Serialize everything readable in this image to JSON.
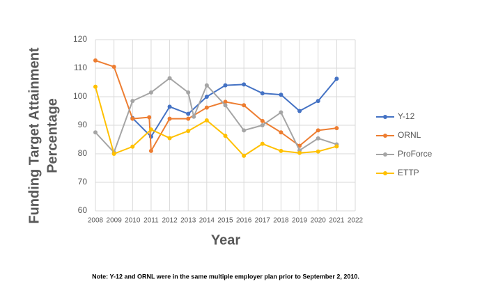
{
  "chart_data": {
    "type": "line",
    "xlabel": "Year",
    "ylabel": [
      "Funding Target Attainment",
      "Percentage"
    ],
    "note": "Note: Y-12 and ORNL were in the same multiple employer plan prior to September 2, 2010.",
    "xlim": [
      2008,
      2022
    ],
    "xticks": [
      2008,
      2009,
      2010,
      2011,
      2012,
      2013,
      2014,
      2015,
      2016,
      2017,
      2018,
      2019,
      2020,
      2021,
      2022
    ],
    "ylim": [
      60,
      120
    ],
    "yticks": [
      60,
      70,
      80,
      90,
      100,
      110,
      120
    ],
    "grid": true,
    "legend": "right",
    "series": [
      {
        "name": "Y-12",
        "color": "#4472c4",
        "x": [
          2010,
          2011,
          2012,
          2013,
          2014,
          2015,
          2016,
          2017,
          2018,
          2019,
          2020,
          2021
        ],
        "values": [
          92.5,
          86,
          96.5,
          94,
          100,
          104,
          104.3,
          101.2,
          100.7,
          95,
          98.5,
          106.3
        ]
      },
      {
        "name": "ORNL",
        "color": "#ed7d31",
        "x": [
          2008,
          2009,
          2010,
          2010.9,
          2011,
          2012,
          2013,
          2014,
          2015,
          2016,
          2017,
          2018,
          2019,
          2020,
          2021
        ],
        "values": [
          112.7,
          110.5,
          92.3,
          92.8,
          81,
          92.3,
          92.3,
          96.2,
          98.2,
          97,
          91.5,
          87.5,
          82.8,
          88.2,
          89
        ]
      },
      {
        "name": "ProForce",
        "color": "#a5a5a5",
        "x": [
          2008,
          2009,
          2010,
          2011,
          2012,
          2013,
          2013.3,
          2014,
          2015,
          2016,
          2017,
          2018,
          2019,
          2020,
          2021
        ],
        "values": [
          87.5,
          80.5,
          98.5,
          101.5,
          106.5,
          101.5,
          93,
          104,
          97,
          88.2,
          90,
          94.5,
          81.2,
          85.4,
          83.3
        ]
      },
      {
        "name": "ETTP",
        "color": "#ffc000",
        "x": [
          2008,
          2009,
          2010,
          2011,
          2012,
          2013,
          2014,
          2015,
          2016,
          2017,
          2018,
          2019,
          2020,
          2021
        ],
        "values": [
          103.5,
          80,
          82.5,
          88.5,
          85.5,
          88,
          91.7,
          86.3,
          79.3,
          83.5,
          81,
          80.3,
          80.8,
          82.6
        ]
      }
    ]
  }
}
